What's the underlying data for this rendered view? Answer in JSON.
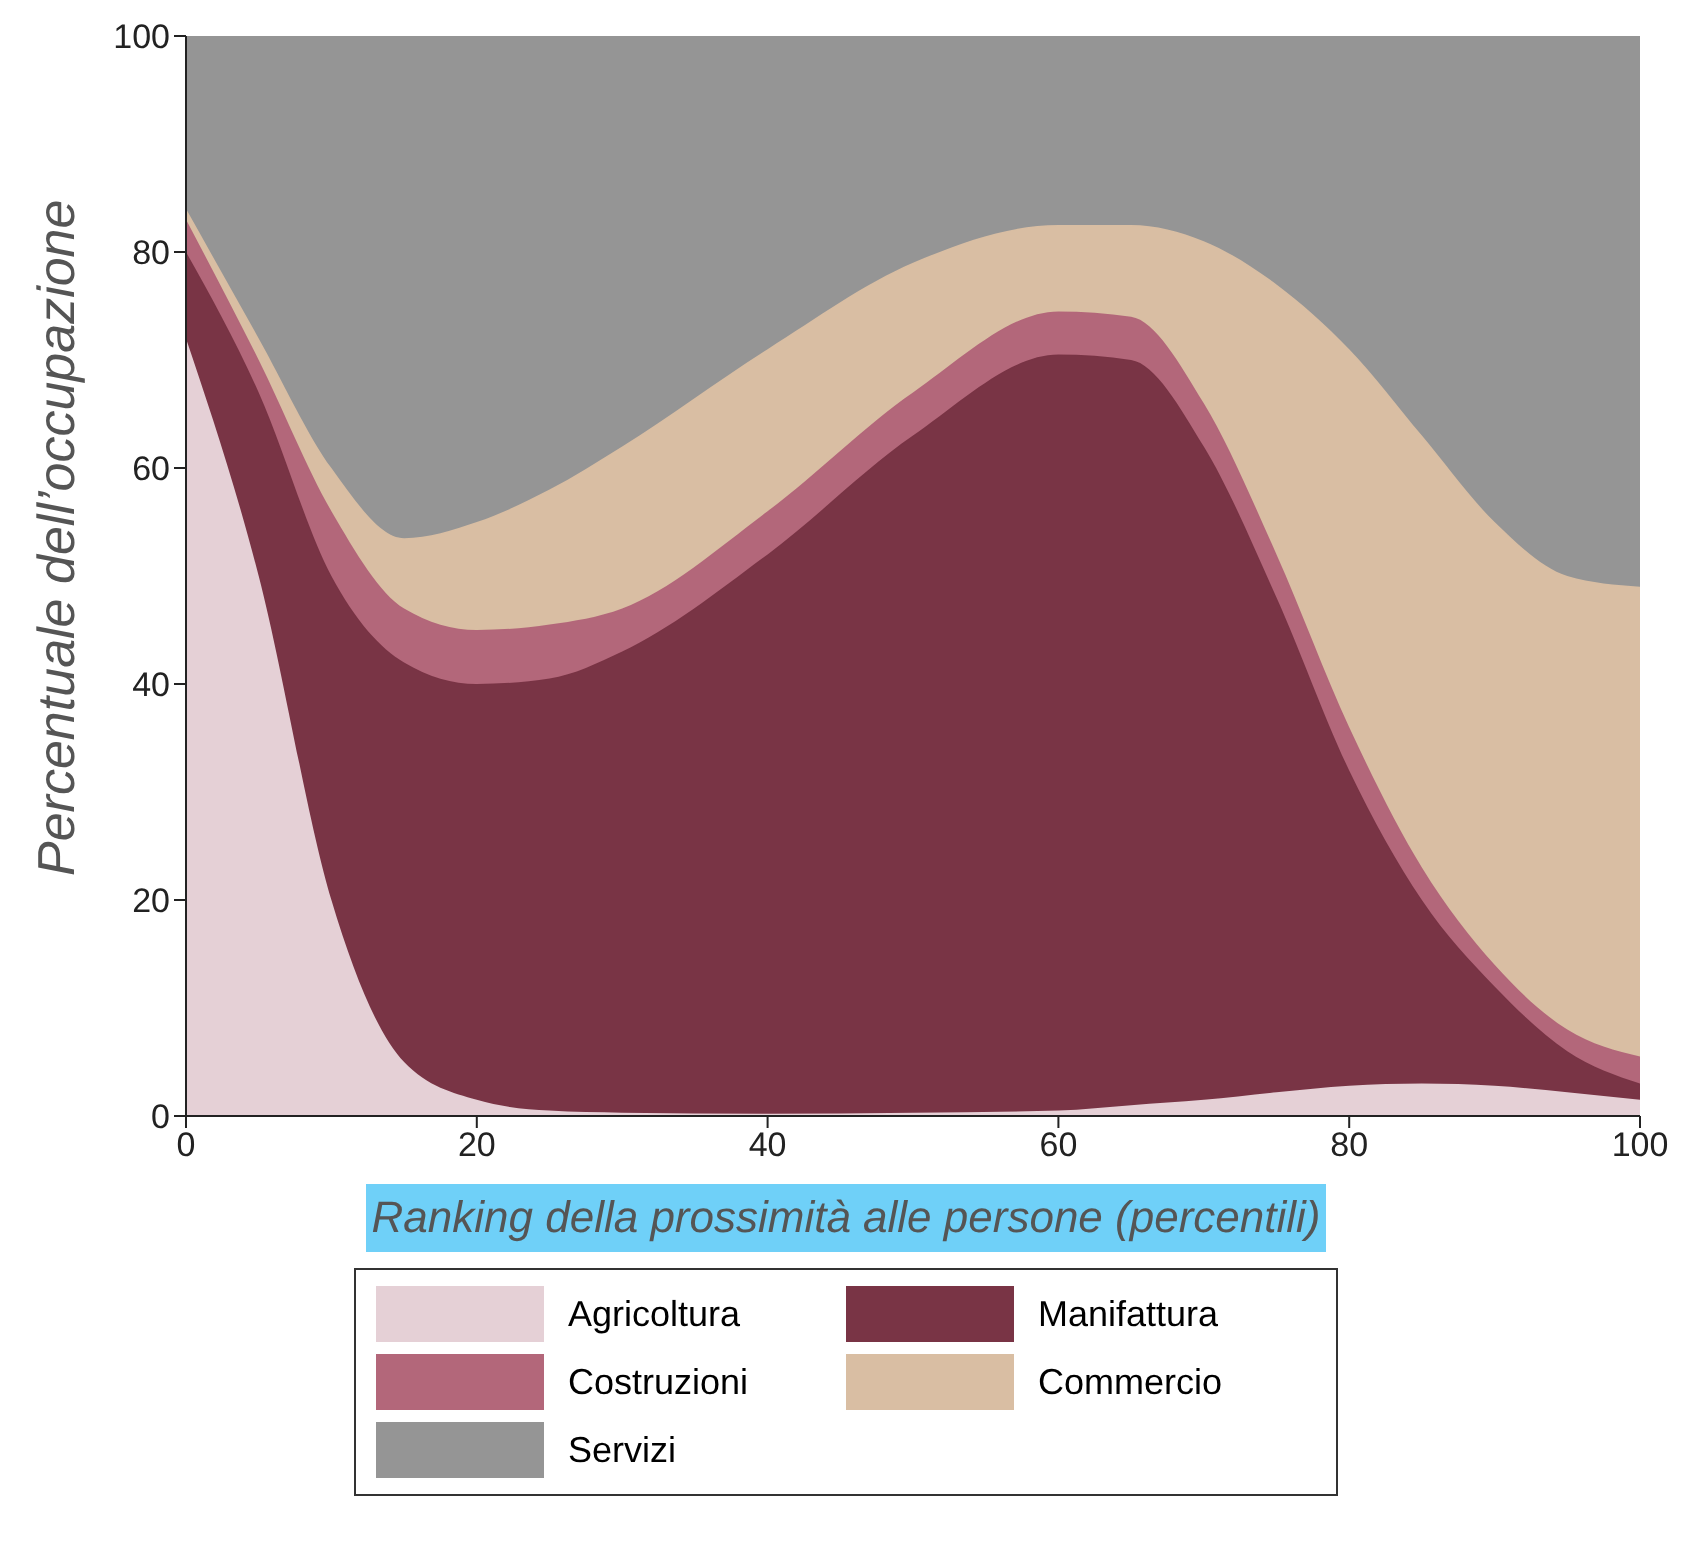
{
  "chart_data": {
    "type": "area",
    "stacked": true,
    "xlabel": "Ranking della prossimità alle persone (percentili)",
    "ylabel": "Percentuale dell’occupazione",
    "x": [
      0,
      5,
      10,
      15,
      20,
      25,
      30,
      40,
      50,
      60,
      65,
      70,
      75,
      80,
      85,
      90,
      95,
      100
    ],
    "series": [
      {
        "name": "Agricoltura",
        "color": "#e5d0d6",
        "values": [
          72,
          50,
          20,
          5,
          1.5,
          0.5,
          0.3,
          0.2,
          0.3,
          0.5,
          1,
          1.5,
          2.2,
          2.8,
          3,
          2.8,
          2.2,
          1.5
        ]
      },
      {
        "name": "Manifattura",
        "color": "#793445",
        "values": [
          8,
          17,
          30,
          37,
          38.5,
          40,
          42.7,
          51.8,
          62.7,
          70,
          69,
          60.5,
          45.8,
          29.2,
          17,
          9.2,
          3.8,
          1.5
        ]
      },
      {
        "name": "Costruzioni",
        "color": "#b3677a",
        "values": [
          3,
          3,
          6,
          5,
          5,
          5,
          4,
          4,
          4,
          4,
          4,
          4,
          4,
          4,
          3,
          2,
          2,
          2.5
        ]
      },
      {
        "name": "Commercio",
        "color": "#d9bea3",
        "values": [
          1,
          2,
          4,
          6.5,
          10,
          12.5,
          15,
          15,
          12,
          8,
          8.5,
          15,
          25,
          35,
          40,
          41,
          42,
          43.5
        ]
      },
      {
        "name": "Servizi",
        "color": "#959595",
        "values": [
          16,
          28,
          40,
          46.5,
          45,
          42,
          38,
          29,
          21,
          17.5,
          17.5,
          19,
          23,
          29,
          37,
          45,
          50,
          51
        ]
      }
    ],
    "xlim": [
      0,
      100
    ],
    "xticks": [
      0,
      20,
      40,
      60,
      80,
      100
    ],
    "ylim": [
      0,
      100
    ],
    "yticks": [
      0,
      20,
      40,
      60,
      80,
      100
    ],
    "grid": false,
    "legend": "bottom"
  }
}
